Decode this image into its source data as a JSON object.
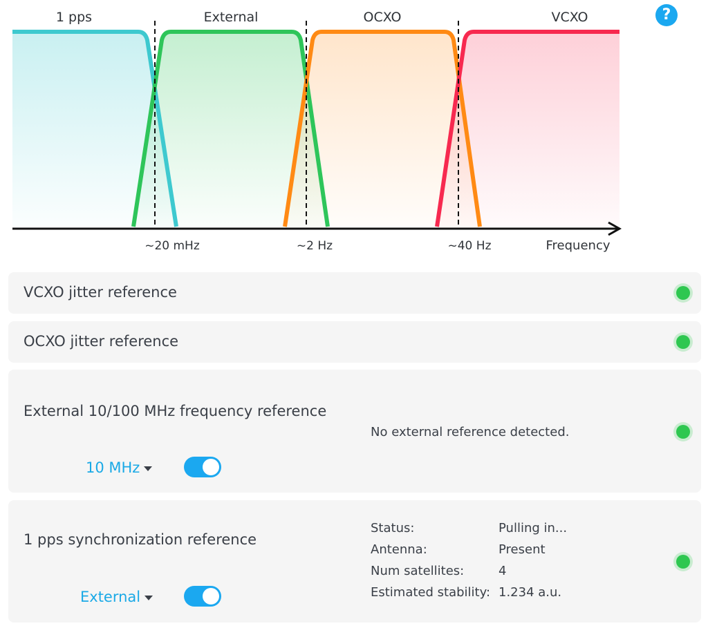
{
  "diagram": {
    "bands": [
      {
        "label": "1 pps",
        "color": "#3ec9cf"
      },
      {
        "label": "External",
        "color": "#2ec55a"
      },
      {
        "label": "OCXO",
        "color": "#ff8a14"
      },
      {
        "label": "VCXO",
        "color": "#f7294f"
      }
    ],
    "tick_labels": [
      "~20 mHz",
      "~2 Hz",
      "~40 Hz"
    ],
    "axis_label": "Frequency"
  },
  "help_label": "?",
  "cards": {
    "vcxo": {
      "title": "VCXO jitter reference",
      "status": "ok"
    },
    "ocxo": {
      "title": "OCXO jitter reference",
      "status": "ok"
    },
    "external": {
      "title": "External 10/100 MHz frequency reference",
      "dropdown_value": "10 MHz",
      "toggle_on": true,
      "message": "No external reference detected.",
      "status": "ok"
    },
    "pps": {
      "title": "1 pps synchronization reference",
      "dropdown_value": "External",
      "toggle_on": true,
      "rows": [
        {
          "key": "Status:",
          "value": "Pulling in..."
        },
        {
          "key": "Antenna:",
          "value": "Present"
        },
        {
          "key": "Num satellites:",
          "value": "4"
        },
        {
          "key": "Estimated stability:",
          "value": "1.234 a.u."
        }
      ],
      "status": "ok"
    }
  },
  "colors": {
    "accent": "#1ba8f0",
    "status_ok": "#2ec750"
  }
}
